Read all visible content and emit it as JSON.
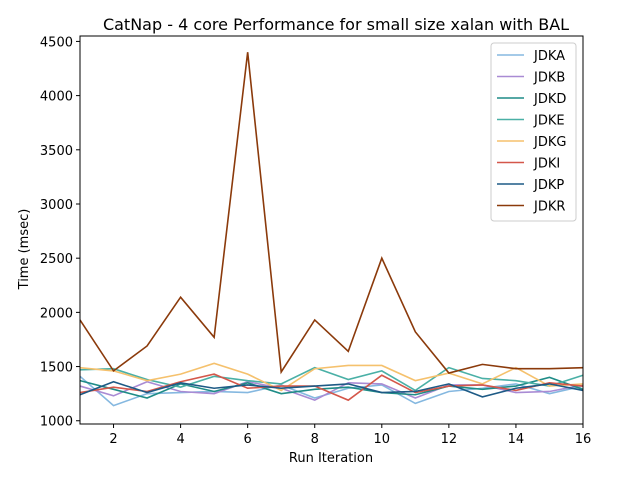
{
  "chart_data": {
    "type": "line",
    "title": "CatNap - 4 core Performance for small size xalan with BAL",
    "xlabel": "Run Iteration",
    "ylabel": "Time (msec)",
    "xlim": [
      1,
      16
    ],
    "ylim": [
      970,
      4550
    ],
    "xticks": [
      2,
      4,
      6,
      8,
      10,
      12,
      14,
      16
    ],
    "yticks": [
      1000,
      1500,
      2000,
      2500,
      3000,
      3500,
      4000,
      4500
    ],
    "grid": false,
    "legend_position": "top-right",
    "x": [
      1,
      2,
      3,
      4,
      5,
      6,
      7,
      8,
      9,
      10,
      11,
      12,
      13,
      14,
      15,
      16
    ],
    "series": [
      {
        "name": "JDKA",
        "color": "#85b8e0",
        "values": [
          1410,
          1140,
          1250,
          1260,
          1270,
          1260,
          1330,
          1210,
          1300,
          1330,
          1160,
          1270,
          1300,
          1340,
          1250,
          1320
        ]
      },
      {
        "name": "JDKB",
        "color": "#a98bd4",
        "values": [
          1320,
          1230,
          1360,
          1270,
          1250,
          1360,
          1300,
          1190,
          1350,
          1340,
          1210,
          1330,
          1330,
          1260,
          1270,
          1330
        ]
      },
      {
        "name": "JDKD",
        "color": "#1f8c87",
        "values": [
          1370,
          1290,
          1210,
          1340,
          1270,
          1350,
          1250,
          1290,
          1310,
          1260,
          1240,
          1320,
          1290,
          1320,
          1400,
          1290
        ]
      },
      {
        "name": "JDKE",
        "color": "#4ab0a6",
        "values": [
          1470,
          1480,
          1380,
          1310,
          1410,
          1370,
          1340,
          1490,
          1380,
          1460,
          1280,
          1490,
          1390,
          1370,
          1320,
          1420
        ]
      },
      {
        "name": "JDKG",
        "color": "#f5c16d",
        "values": [
          1490,
          1460,
          1370,
          1430,
          1530,
          1430,
          1280,
          1480,
          1510,
          1510,
          1370,
          1440,
          1340,
          1490,
          1320,
          1340
        ]
      },
      {
        "name": "JDKI",
        "color": "#d4574a",
        "values": [
          1260,
          1310,
          1270,
          1360,
          1430,
          1300,
          1320,
          1320,
          1190,
          1420,
          1260,
          1320,
          1330,
          1280,
          1350,
          1320
        ]
      },
      {
        "name": "JDKP",
        "color": "#1d5a85",
        "values": [
          1240,
          1360,
          1260,
          1350,
          1300,
          1330,
          1300,
          1320,
          1340,
          1260,
          1270,
          1340,
          1220,
          1300,
          1340,
          1280
        ]
      },
      {
        "name": "JDKR",
        "color": "#8b3a0b",
        "values": [
          1930,
          1460,
          1690,
          2140,
          1770,
          4400,
          1450,
          1930,
          1640,
          2500,
          1820,
          1440,
          1520,
          1480,
          1480,
          1490
        ]
      }
    ]
  }
}
